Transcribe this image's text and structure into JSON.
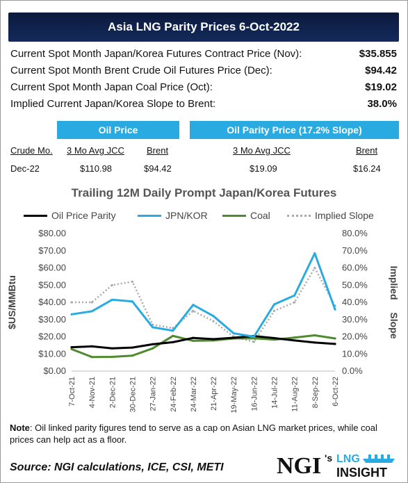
{
  "header": {
    "title": "Asia LNG Parity Prices 6-Oct-2022"
  },
  "summary_rows": [
    {
      "label": "Current Spot Month Japan/Korea Futures Contract Price (Nov):",
      "value": "$35.855"
    },
    {
      "label": "Current Spot Month Brent Crude Oil Futures Price (Dec):",
      "value": "$94.42"
    },
    {
      "label": "Current Spot Month Japan Coal Price (Oct):",
      "value": "$19.02"
    },
    {
      "label": "Implied Current Japan/Korea Slope to Brent:",
      "value": "38.0%"
    }
  ],
  "oil_price_box": {
    "title": "Oil Price",
    "headers": {
      "crude_mo": "Crude Mo.",
      "jcc": "3 Mo Avg JCC",
      "brent": "Brent"
    },
    "row": {
      "crude_mo": "Dec-22",
      "jcc": "$110.98",
      "brent": "$94.42"
    }
  },
  "parity_box": {
    "title": "Oil Parity Price (17.2% Slope)",
    "headers": {
      "jcc": "3 Mo Avg JCC",
      "brent": "Brent"
    },
    "row": {
      "jcc": "$19.09",
      "brent": "$16.24"
    }
  },
  "chart_data": {
    "type": "line",
    "title": "Trailing 12M Daily Prompt Japan/Korea Futures",
    "ylabel": "$US/MMBtu",
    "y2label": "Implied Slope",
    "ylim": [
      0,
      80
    ],
    "y2lim": [
      0,
      0.8
    ],
    "yticks": [
      "$0.00",
      "$10.00",
      "$20.00",
      "$30.00",
      "$40.00",
      "$50.00",
      "$60.00",
      "$70.00",
      "$80.00"
    ],
    "y2ticks": [
      "0.0%",
      "10.0%",
      "20.0%",
      "30.0%",
      "40.0%",
      "50.0%",
      "60.0%",
      "70.0%",
      "80.0%"
    ],
    "x": [
      "7-Oct-21",
      "4-Nov-21",
      "2-Dec-21",
      "30-Dec-21",
      "27-Jan-22",
      "24-Feb-22",
      "24-Mar-22",
      "21-Apr-22",
      "19-May-22",
      "16-Jun-22",
      "14-Jul-22",
      "11-Aug-22",
      "8-Sep-22",
      "6-Oct-22"
    ],
    "legend_position": "top",
    "grid": false,
    "series": [
      {
        "name": "Oil Price Parity",
        "color": "#000000",
        "axis": "left",
        "style": "solid",
        "values": [
          13.9,
          14.4,
          13.2,
          13.7,
          15.6,
          16.8,
          19.3,
          18.6,
          19.4,
          20.4,
          19.2,
          17.8,
          16.6,
          15.8
        ]
      },
      {
        "name": "JPN/KOR",
        "color": "#29abe2",
        "axis": "left",
        "style": "solid",
        "values": [
          33.0,
          34.8,
          41.5,
          40.5,
          25.5,
          23.5,
          38.5,
          32.0,
          22.0,
          20.0,
          38.8,
          44.0,
          68.5,
          35.9
        ]
      },
      {
        "name": "Coal",
        "color": "#4e8a2e",
        "axis": "left",
        "style": "solid",
        "values": [
          12.8,
          8.2,
          8.3,
          9.0,
          13.2,
          20.5,
          17.6,
          17.8,
          19.0,
          19.1,
          18.3,
          19.5,
          20.8,
          19.0
        ]
      },
      {
        "name": "Implied Slope",
        "color": "#a9a9a9",
        "axis": "right",
        "style": "dotted",
        "values": [
          0.4,
          0.4,
          0.5,
          0.52,
          0.27,
          0.25,
          0.35,
          0.29,
          0.2,
          0.17,
          0.35,
          0.4,
          0.6,
          0.38
        ]
      }
    ]
  },
  "note": {
    "label": "Note",
    "text": ": Oil linked parity figures tend to serve as a cap on Asian LNG market prices, while coal prices can help act as a floor."
  },
  "source": "Source: NGI calculations, ICE, CSI, METI",
  "logo": {
    "brand": "NGI",
    "suffix": "'s",
    "product_top": "LNG",
    "product_bottom": "INSIGHT"
  }
}
